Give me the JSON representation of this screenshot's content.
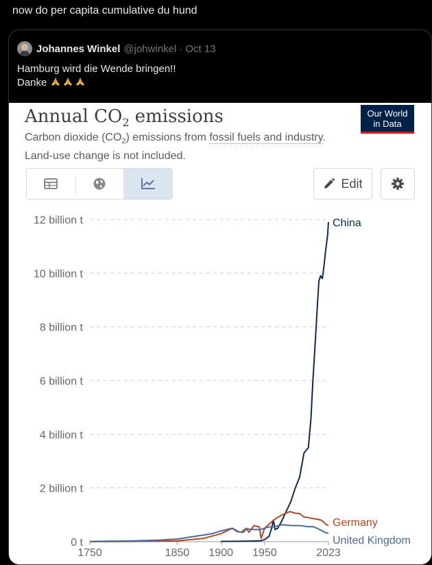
{
  "tweet": {
    "text": "now do per capita cumulative du hund"
  },
  "quoted": {
    "author_name": "Johannes Winkel",
    "author_handle": "@johwinkel",
    "separator": "·",
    "date": "Oct 13",
    "line1": "Hamburg wird die Wende bringen!!",
    "line2": "Danke",
    "emoji": "folded-hands-icon x3"
  },
  "owid_logo": {
    "line1": "Our World",
    "line2": "in Data"
  },
  "chart_header": {
    "title_prefix": "Annual CO",
    "title_sub": "2",
    "title_suffix": " emissions",
    "subtitle_a": "Carbon dioxide (CO",
    "subtitle_sub": "2",
    "subtitle_b": ") emissions from ",
    "subtitle_link": "fossil fuels and industry",
    "subtitle_c": ". Land-use change is not included."
  },
  "controls": {
    "tabs": [
      {
        "icon": "table-icon",
        "active": false
      },
      {
        "icon": "globe-icon",
        "active": false
      },
      {
        "icon": "line-chart-icon",
        "active": true
      }
    ],
    "edit_label": "Edit",
    "edit_icon": "pencil-icon",
    "settings_icon": "gear-icon"
  },
  "chart_data": {
    "type": "line",
    "title": "Annual CO2 emissions",
    "ylim": [
      0,
      12
    ],
    "xlim": [
      1750,
      2023
    ],
    "y_ticks": [
      0,
      2,
      4,
      6,
      8,
      10,
      12
    ],
    "y_tick_labels": [
      "0 t",
      "2 billion t",
      "4 billion t",
      "6 billion t",
      "8 billion t",
      "10 billion t",
      "12 billion t"
    ],
    "x_ticks": [
      1750,
      1850,
      1900,
      1950,
      2023
    ],
    "x_tick_labels": [
      "1750",
      "1850",
      "1900",
      "1950",
      "2023"
    ],
    "grid": true,
    "series": [
      {
        "name": "China",
        "color": "#0b2a56",
        "x": [
          1900,
          1930,
          1945,
          1950,
          1955,
          1958,
          1960,
          1962,
          1965,
          1970,
          1975,
          1980,
          1985,
          1990,
          1995,
          2000,
          2003,
          2005,
          2008,
          2010,
          2012,
          2014,
          2016,
          2018,
          2020,
          2022,
          2023
        ],
        "y": [
          0.01,
          0.02,
          0.03,
          0.08,
          0.2,
          0.5,
          0.8,
          0.45,
          0.5,
          0.8,
          1.15,
          1.5,
          2.0,
          2.4,
          3.3,
          3.5,
          4.6,
          5.9,
          7.5,
          8.6,
          9.7,
          9.9,
          9.8,
          10.3,
          10.9,
          11.4,
          11.9
        ]
      },
      {
        "name": "Germany",
        "color": "#b5471d",
        "x": [
          1750,
          1800,
          1850,
          1880,
          1900,
          1913,
          1918,
          1923,
          1929,
          1932,
          1938,
          1944,
          1946,
          1950,
          1960,
          1970,
          1979,
          1985,
          1990,
          1995,
          2000,
          2005,
          2010,
          2015,
          2020,
          2023
        ],
        "y": [
          0,
          0.01,
          0.03,
          0.12,
          0.3,
          0.5,
          0.38,
          0.35,
          0.5,
          0.35,
          0.6,
          0.55,
          0.12,
          0.5,
          0.8,
          1.0,
          1.12,
          1.06,
          1.05,
          0.92,
          0.9,
          0.86,
          0.84,
          0.8,
          0.65,
          0.6
        ]
      },
      {
        "name": "United Kingdom",
        "color": "#4c6a9c",
        "x": [
          1750,
          1800,
          1830,
          1850,
          1870,
          1890,
          1900,
          1913,
          1921,
          1926,
          1929,
          1938,
          1945,
          1950,
          1955,
          1960,
          1970,
          1980,
          1990,
          2000,
          2005,
          2010,
          2015,
          2020,
          2023
        ],
        "y": [
          0.01,
          0.03,
          0.06,
          0.1,
          0.2,
          0.3,
          0.4,
          0.5,
          0.36,
          0.35,
          0.48,
          0.45,
          0.45,
          0.5,
          0.55,
          0.55,
          0.63,
          0.6,
          0.6,
          0.56,
          0.56,
          0.5,
          0.42,
          0.33,
          0.32
        ]
      }
    ]
  }
}
